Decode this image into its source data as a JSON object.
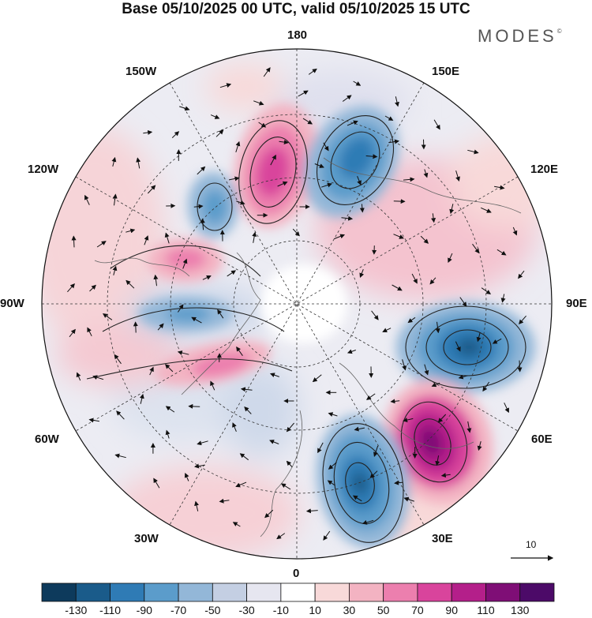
{
  "title": "Base 05/10/2025 00 UTC, valid 05/10/2025 15 UTC",
  "brand": "MODES",
  "brand_mark": "©",
  "longitude_labels": {
    "lon_180": "180",
    "lon_150e": "150E",
    "lon_120e": "120E",
    "lon_90e": "90E",
    "lon_60e": "60E",
    "lon_30e": "30E",
    "lon_0": "0",
    "lon_30w": "30W",
    "lon_60w": "60W",
    "lon_90w": "90W",
    "lon_120w": "120W",
    "lon_150w": "150W"
  },
  "vector_reference": {
    "label": "10"
  },
  "colorbar": {
    "ticks": [
      "-130",
      "-110",
      "-90",
      "-70",
      "-50",
      "-30",
      "-10",
      "10",
      "30",
      "50",
      "70",
      "90",
      "110",
      "130"
    ],
    "colors": [
      "#0d3a5c",
      "#1a5b8a",
      "#2f7bb5",
      "#5b9ccb",
      "#93b7d8",
      "#c4cfe3",
      "#e6e6f0",
      "#ffffff",
      "#f8d9d9",
      "#f3b3c2",
      "#ec7fae",
      "#d9449c",
      "#b41f8a",
      "#7f0e76",
      "#4c0a68"
    ]
  },
  "anomaly_centers": [
    {
      "name": "positive-anomaly-north",
      "sign": "positive",
      "peak": "90",
      "color": "#d9449c"
    },
    {
      "name": "negative-anomaly-northeast",
      "sign": "negative",
      "peak": "-90",
      "color": "#2f7bb5"
    },
    {
      "name": "negative-anomaly-east",
      "sign": "negative",
      "peak": "-110",
      "color": "#1a5b8a"
    },
    {
      "name": "positive-anomaly-southeast",
      "sign": "positive",
      "peak": "130",
      "color": "#7f0e76"
    },
    {
      "name": "negative-anomaly-south",
      "sign": "negative",
      "peak": "-110",
      "color": "#1a5b8a"
    },
    {
      "name": "negative-anomaly-northwest",
      "sign": "negative",
      "peak": "-70",
      "color": "#5b9ccb"
    },
    {
      "name": "positive-anomaly-west",
      "sign": "positive",
      "peak": "70",
      "color": "#ec7fae"
    },
    {
      "name": "positive-anomaly-southwest",
      "sign": "positive",
      "peak": "90",
      "color": "#d9449c"
    }
  ]
}
